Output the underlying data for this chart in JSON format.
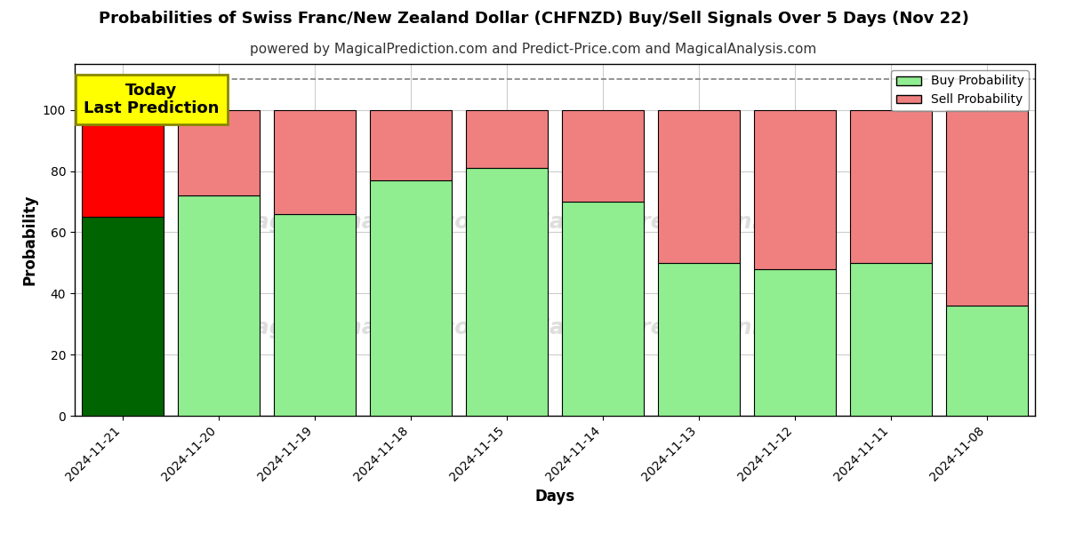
{
  "title": "Probabilities of Swiss Franc/New Zealand Dollar (CHFNZD) Buy/Sell Signals Over 5 Days (Nov 22)",
  "subtitle": "powered by MagicalPrediction.com and Predict-Price.com and MagicalAnalysis.com",
  "xlabel": "Days",
  "ylabel": "Probability",
  "categories": [
    "2024-11-21",
    "2024-11-20",
    "2024-11-19",
    "2024-11-18",
    "2024-11-15",
    "2024-11-14",
    "2024-11-13",
    "2024-11-12",
    "2024-11-11",
    "2024-11-08"
  ],
  "buy_values": [
    65,
    72,
    66,
    77,
    81,
    70,
    50,
    48,
    50,
    36
  ],
  "sell_values": [
    35,
    28,
    34,
    23,
    19,
    30,
    50,
    52,
    50,
    64
  ],
  "buy_color_today": "#006400",
  "sell_color_today": "#ff0000",
  "buy_color_normal": "#90EE90",
  "sell_color_normal": "#F08080",
  "bar_edge_color": "#000000",
  "bar_edge_width": 0.8,
  "ylim": [
    0,
    115
  ],
  "yticks": [
    0,
    20,
    40,
    60,
    80,
    100
  ],
  "dashed_line_y": 110,
  "today_box_color": "#ffff00",
  "today_label": "Today\nLast Prediction",
  "today_label_fontsize": 13,
  "title_fontsize": 13,
  "subtitle_fontsize": 11,
  "axis_label_fontsize": 12,
  "tick_fontsize": 10,
  "legend_fontsize": 10,
  "background_color": "#ffffff",
  "grid_color": "#cccccc",
  "bar_width": 0.85
}
